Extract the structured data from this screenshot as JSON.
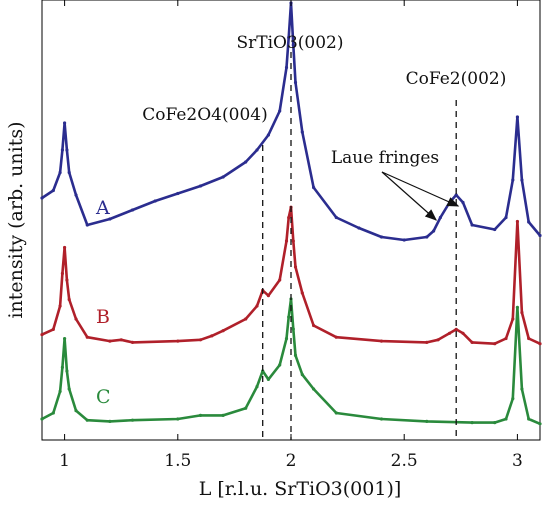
{
  "chart_data": {
    "type": "line",
    "xlabel": "L [r.l.u. SrTiO3(001)]",
    "ylabel": "intensity (arb. units)",
    "xlim": [
      0.9,
      3.1
    ],
    "x_ticks": [
      "1",
      "1.5",
      "2",
      "2.5",
      "3"
    ],
    "y_ticks": "none",
    "grid": false,
    "legend": "curve labels A, B, C placed left of each curve",
    "reference_lines": [
      {
        "label": "CoFe2O4(004)",
        "x": 1.875
      },
      {
        "label": "SrTiO3(002)",
        "x": 2.0
      },
      {
        "label": "CoFe2(002)",
        "x": 2.73
      }
    ],
    "annotation": {
      "text": "Laue fringes",
      "points_to_x": [
        2.65,
        2.73
      ]
    },
    "series": [
      {
        "name": "A",
        "color": "#2b2d8f",
        "x": [
          0.9,
          0.95,
          0.98,
          0.99,
          1.0,
          1.01,
          1.02,
          1.05,
          1.1,
          1.2,
          1.3,
          1.4,
          1.5,
          1.6,
          1.7,
          1.8,
          1.85,
          1.9,
          1.95,
          1.98,
          1.99,
          2.0,
          2.01,
          2.02,
          2.05,
          2.1,
          2.2,
          2.3,
          2.4,
          2.5,
          2.6,
          2.63,
          2.66,
          2.7,
          2.73,
          2.76,
          2.8,
          2.9,
          2.95,
          2.98,
          3.0,
          3.02,
          3.05,
          3.1
        ],
        "y": [
          0.28,
          0.33,
          0.45,
          0.6,
          0.78,
          0.6,
          0.45,
          0.3,
          0.1,
          0.14,
          0.2,
          0.26,
          0.31,
          0.36,
          0.42,
          0.52,
          0.6,
          0.7,
          0.86,
          1.15,
          1.35,
          1.58,
          1.3,
          1.05,
          0.72,
          0.35,
          0.15,
          0.08,
          0.02,
          0.0,
          0.02,
          0.06,
          0.15,
          0.25,
          0.3,
          0.25,
          0.1,
          0.07,
          0.15,
          0.4,
          0.82,
          0.4,
          0.12,
          0.03
        ]
      },
      {
        "name": "B",
        "color": "#b0202a",
        "x": [
          0.9,
          0.95,
          0.98,
          0.99,
          1.0,
          1.01,
          1.02,
          1.05,
          1.1,
          1.2,
          1.25,
          1.3,
          1.5,
          1.6,
          1.65,
          1.7,
          1.8,
          1.85,
          1.875,
          1.9,
          1.95,
          1.98,
          1.99,
          2.0,
          2.01,
          2.02,
          2.05,
          2.1,
          2.2,
          2.4,
          2.6,
          2.65,
          2.7,
          2.73,
          2.76,
          2.8,
          2.9,
          2.95,
          2.98,
          3.0,
          3.02,
          3.05,
          3.1
        ],
        "y": [
          0.08,
          0.12,
          0.3,
          0.55,
          0.75,
          0.5,
          0.35,
          0.2,
          0.06,
          0.03,
          0.04,
          0.02,
          0.03,
          0.04,
          0.07,
          0.11,
          0.2,
          0.3,
          0.42,
          0.38,
          0.5,
          0.8,
          0.98,
          1.06,
          0.8,
          0.6,
          0.4,
          0.15,
          0.06,
          0.03,
          0.02,
          0.04,
          0.09,
          0.12,
          0.09,
          0.02,
          0.01,
          0.05,
          0.2,
          0.95,
          0.25,
          0.05,
          0.01
        ]
      },
      {
        "name": "C",
        "color": "#2a8a3c",
        "x": [
          0.9,
          0.95,
          0.98,
          0.99,
          1.0,
          1.01,
          1.02,
          1.05,
          1.1,
          1.2,
          1.3,
          1.5,
          1.6,
          1.7,
          1.8,
          1.85,
          1.875,
          1.9,
          1.95,
          1.98,
          1.99,
          2.0,
          2.01,
          2.02,
          2.05,
          2.1,
          2.2,
          2.4,
          2.6,
          2.8,
          2.9,
          2.95,
          2.98,
          3.0,
          3.02,
          3.05,
          3.1
        ],
        "y": [
          0.05,
          0.1,
          0.28,
          0.48,
          0.72,
          0.45,
          0.3,
          0.12,
          0.04,
          0.03,
          0.04,
          0.05,
          0.08,
          0.08,
          0.14,
          0.32,
          0.45,
          0.38,
          0.5,
          0.72,
          0.9,
          1.05,
          0.8,
          0.58,
          0.42,
          0.3,
          0.1,
          0.05,
          0.03,
          0.02,
          0.02,
          0.05,
          0.22,
          0.98,
          0.3,
          0.05,
          0.01
        ]
      }
    ]
  }
}
